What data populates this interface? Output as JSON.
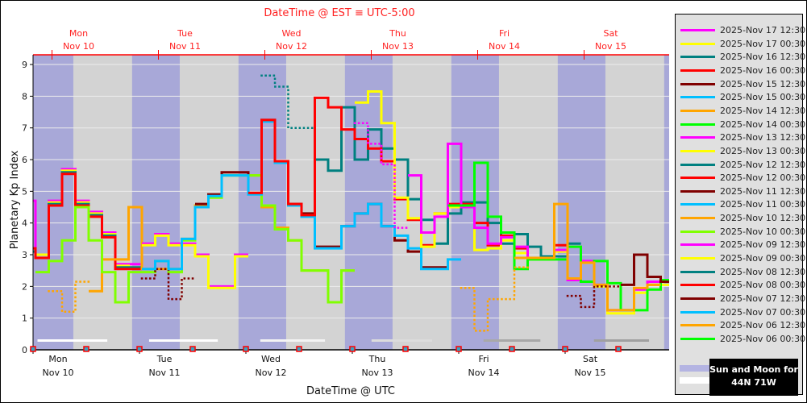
{
  "chart_data": {
    "type": "line",
    "title": "DateTime @ EST ≡ UTC-5:00",
    "xlabel": "DateTime @ UTC",
    "ylabel": "Planetary Kp Index",
    "xlim": [
      "2025-11-10 00:00",
      "2025-11-15 23:30"
    ],
    "ylim": [
      0,
      9.3
    ],
    "yticks": [
      0,
      1,
      2,
      3,
      4,
      5,
      6,
      7,
      8,
      9
    ],
    "grid": true,
    "step_hours": 3,
    "bottom_ticks": [
      {
        "time": "2025-11-10 00:00",
        "day": "Mon",
        "date": "Nov 10"
      },
      {
        "time": "2025-11-11 00:00",
        "day": "Tue",
        "date": "Nov 11"
      },
      {
        "time": "2025-11-12 00:00",
        "day": "Wed",
        "date": "Nov 12"
      },
      {
        "time": "2025-11-13 00:00",
        "day": "Thu",
        "date": "Nov 13"
      },
      {
        "time": "2025-11-14 00:00",
        "day": "Fri",
        "date": "Nov 14"
      },
      {
        "time": "2025-11-15 00:00",
        "day": "Sat",
        "date": "Nov 15"
      }
    ],
    "top_ticks": [
      {
        "time": "2025-11-10 05:00",
        "day": "Mon",
        "date": "Nov 10"
      },
      {
        "time": "2025-11-11 05:00",
        "day": "Tue",
        "date": "Nov 11"
      },
      {
        "time": "2025-11-12 05:00",
        "day": "Wed",
        "date": "Nov 12"
      },
      {
        "time": "2025-11-13 05:00",
        "day": "Thu",
        "date": "Nov 13"
      },
      {
        "time": "2025-11-14 05:00",
        "day": "Fri",
        "date": "Nov 14"
      },
      {
        "time": "2025-11-15 05:00",
        "day": "Sat",
        "date": "Nov 15"
      }
    ],
    "night_bands": [
      [
        "2025-11-09 22:20",
        "2025-11-10 09:05"
      ],
      [
        "2025-11-10 22:20",
        "2025-11-11 09:05"
      ],
      [
        "2025-11-11 22:20",
        "2025-11-12 09:05"
      ],
      [
        "2025-11-12 22:20",
        "2025-11-13 09:05"
      ],
      [
        "2025-11-13 22:20",
        "2025-11-14 09:05"
      ],
      [
        "2025-11-14 22:20",
        "2025-11-15 09:05"
      ],
      [
        "2025-11-15 22:20",
        "2025-11-16 09:05"
      ]
    ],
    "moon_bars": [
      {
        "start": "2025-11-10 01:00",
        "end": "2025-11-10 16:45",
        "color": "#ffffff"
      },
      {
        "start": "2025-11-11 02:10",
        "end": "2025-11-11 17:40",
        "color": "#ffffff"
      },
      {
        "start": "2025-11-12 03:15",
        "end": "2025-11-12 17:50",
        "color": "#f4f4f4"
      },
      {
        "start": "2025-11-13 04:20",
        "end": "2025-11-13 18:00",
        "color": "#dcdcdc"
      },
      {
        "start": "2025-11-14 05:35",
        "end": "2025-11-14 18:25",
        "color": "#a8a8a8"
      },
      {
        "start": "2025-11-15 06:30",
        "end": "2025-11-15 18:55",
        "color": "#a0a0a0"
      }
    ],
    "series": [
      {
        "color": "#ff00ff",
        "style": "solid",
        "start": "2025-11-09 21:00",
        "values": [
          4.7,
          3.0,
          4.7,
          5.7,
          4.7,
          4.35,
          3.7,
          2.7,
          2.7
        ]
      },
      {
        "color": "#ffff00",
        "style": "solid",
        "start": "2025-11-10 00:00",
        "values": [
          3.0,
          4.65,
          5.65,
          4.65,
          4.3,
          3.65,
          2.65,
          2.6
        ]
      },
      {
        "color": "#008080",
        "style": "solid",
        "start": "2025-11-09 21:00",
        "values": [
          3.1,
          2.9,
          4.6,
          5.6,
          4.6,
          4.25,
          3.6,
          2.6,
          2.6
        ]
      },
      {
        "color": "#ff0000",
        "style": "solid",
        "start": "2025-11-09 21:00",
        "values": [
          3.2,
          2.9,
          4.55,
          5.55,
          4.55,
          4.2,
          3.55,
          2.55,
          2.55
        ]
      },
      {
        "color": "#ffa500",
        "style": "dotted",
        "start": "2025-11-10 03:00",
        "values": [
          1.85,
          1.2,
          2.15
        ]
      },
      {
        "color": "#ffa500",
        "style": "solid",
        "start": "2025-11-10 12:00",
        "values": [
          1.85,
          2.85,
          2.85,
          4.5,
          2.55,
          2.55,
          2.55,
          3.5,
          4.55,
          4.85,
          5.5,
          5.5,
          5.5,
          4.5,
          3.85,
          3.45,
          2.5,
          2.5,
          1.5,
          2.5
        ]
      },
      {
        "color": "#80ff00",
        "style": "solid",
        "start": "2025-11-10 00:00",
        "values": [
          2.45,
          2.8,
          3.45,
          4.5,
          3.45,
          2.45,
          1.5,
          2.45,
          2.45,
          2.8,
          2.45,
          3.45,
          4.5,
          4.8,
          5.5,
          5.5,
          5.5,
          4.55,
          3.8,
          3.45,
          2.5,
          2.5,
          1.5,
          2.5
        ]
      },
      {
        "color": "#ff00ff",
        "style": "solid",
        "start": "2025-11-11 00:00",
        "values": [
          3.35,
          3.65,
          3.35,
          3.35,
          3.0,
          2.0,
          2.0,
          3.0
        ]
      },
      {
        "color": "#ffff00",
        "style": "solid",
        "start": "2025-11-11 00:00",
        "values": [
          3.3,
          3.6,
          3.3,
          3.3,
          2.95,
          1.95,
          1.95,
          2.95
        ]
      },
      {
        "color": "#800000",
        "style": "dotted",
        "start": "2025-11-11 00:00",
        "values": [
          2.25,
          2.55,
          1.6,
          2.25
        ]
      },
      {
        "color": "#800000",
        "style": "solid",
        "start": "2025-11-11 12:00",
        "values": [
          4.6,
          4.9,
          5.6,
          5.6,
          4.95,
          7.25,
          5.95,
          4.6,
          4.3,
          3.25,
          3.25,
          3.9,
          4.3,
          4.6,
          3.9,
          3.45,
          3.1,
          2.6,
          2.6
        ]
      },
      {
        "color": "#00bfff",
        "style": "solid",
        "start": "2025-11-11 00:00",
        "values": [
          2.55,
          2.8,
          2.55,
          3.5,
          4.5,
          4.85,
          5.5,
          5.5,
          4.9,
          7.2,
          5.9,
          4.55,
          4.2,
          3.2,
          3.2,
          3.9,
          4.3,
          4.6,
          3.9,
          3.6,
          3.2,
          2.55,
          2.55,
          2.85
        ]
      },
      {
        "color": "#008080",
        "style": "dotted",
        "start": "2025-11-12 03:00",
        "values": [
          8.65,
          8.3,
          7.0,
          7.0
        ]
      },
      {
        "color": "#008080",
        "style": "solid",
        "start": "2025-11-12 15:00",
        "values": [
          6.0,
          5.65,
          7.65,
          6.0,
          6.95,
          6.35,
          6.0,
          4.75,
          4.1,
          3.35,
          4.3,
          4.65,
          4.65,
          4.0,
          3.35,
          3.65,
          3.25,
          2.95,
          2.95,
          3.35
        ]
      },
      {
        "color": "#ff0000",
        "style": "solid",
        "start": "2025-11-12 00:00",
        "values": [
          4.95,
          7.25,
          5.95,
          4.6,
          4.25,
          7.95,
          7.65,
          6.95,
          6.65,
          6.35,
          5.95,
          4.75,
          4.1,
          3.3,
          4.3,
          4.6,
          4.6,
          4.0,
          3.3,
          3.6,
          3.2,
          2.9,
          2.9,
          3.3
        ]
      },
      {
        "color": "#ffff00",
        "style": "solid",
        "start": "2025-11-13 00:00",
        "values": [
          7.8,
          8.15,
          7.15,
          4.8,
          4.15,
          3.25,
          4.3,
          4.5,
          4.5,
          3.15,
          3.2,
          3.45,
          3.05,
          2.85,
          2.85,
          3.1,
          2.2,
          2.75,
          2.0,
          1.15,
          1.15,
          1.8,
          2.05,
          2.05
        ]
      },
      {
        "color": "#ff00ff",
        "style": "dotted",
        "start": "2025-11-13 00:00",
        "values": [
          7.15,
          6.5,
          5.85,
          3.85
        ]
      },
      {
        "color": "#ff00ff",
        "style": "solid",
        "start": "2025-11-13 12:00",
        "values": [
          5.5,
          3.7,
          4.2,
          6.5,
          4.5,
          3.85,
          3.35,
          3.55,
          3.25,
          2.9,
          2.9,
          3.15,
          2.2,
          2.8,
          2.05,
          1.25,
          1.25,
          1.9,
          2.15,
          2.15
        ]
      },
      {
        "color": "#00ff00",
        "style": "solid",
        "start": "2025-11-13 21:00",
        "values": [
          4.55,
          4.55,
          5.9,
          4.2,
          3.7,
          2.55,
          2.85,
          2.85,
          2.85,
          3.25,
          2.15,
          2.8,
          2.1,
          1.25,
          1.25,
          1.9,
          2.2
        ]
      },
      {
        "color": "#ffa500",
        "style": "dotted",
        "start": "2025-11-14 00:00",
        "values": [
          1.95,
          0.6,
          1.6,
          1.6,
          2.6
        ]
      },
      {
        "color": "#ffa500",
        "style": "solid",
        "start": "2025-11-14 12:00",
        "values": [
          2.9,
          2.9,
          2.9,
          4.6,
          2.25,
          2.75,
          2.05,
          1.25,
          1.25,
          1.95,
          2.05
        ]
      },
      {
        "color": "#800000",
        "style": "dotted",
        "start": "2025-11-15 00:00",
        "values": [
          1.7,
          1.35,
          2.0,
          2.0
        ]
      },
      {
        "color": "#800000",
        "style": "solid",
        "start": "2025-11-15 12:00",
        "values": [
          2.05,
          3.0,
          2.3,
          2.15
        ]
      }
    ]
  },
  "legend": {
    "items": [
      {
        "label": "2025-Nov 17 12:30",
        "color": "#ff00ff"
      },
      {
        "label": "2025-Nov 17 00:30",
        "color": "#ffff00"
      },
      {
        "label": "2025-Nov 16 12:30",
        "color": "#008080"
      },
      {
        "label": "2025-Nov 16 00:30",
        "color": "#ff0000"
      },
      {
        "label": "2025-Nov 15 12:30",
        "color": "#800000"
      },
      {
        "label": "2025-Nov 15 00:30",
        "color": "#00bfff"
      },
      {
        "label": "2025-Nov 14 12:30",
        "color": "#ffa500"
      },
      {
        "label": "2025-Nov 14 00:30",
        "color": "#00ff00"
      },
      {
        "label": "2025-Nov 13 12:30",
        "color": "#ff00ff"
      },
      {
        "label": "2025-Nov 13 00:30",
        "color": "#ffff00"
      },
      {
        "label": "2025-Nov 12 12:30",
        "color": "#008080"
      },
      {
        "label": "2025-Nov 12 00:30",
        "color": "#ff0000"
      },
      {
        "label": "2025-Nov 11 12:30",
        "color": "#800000"
      },
      {
        "label": "2025-Nov 11 00:30",
        "color": "#00bfff"
      },
      {
        "label": "2025-Nov 10 12:30",
        "color": "#ffa500"
      },
      {
        "label": "2025-Nov 10 00:30",
        "color": "#80ff00"
      },
      {
        "label": "2025-Nov 09 12:30",
        "color": "#ff00ff"
      },
      {
        "label": "2025-Nov 09 00:30",
        "color": "#ffff00"
      },
      {
        "label": "2025-Nov 08 12:30",
        "color": "#008080"
      },
      {
        "label": "2025-Nov 08 00:30",
        "color": "#ff0000"
      },
      {
        "label": "2025-Nov 07 12:30",
        "color": "#800000"
      },
      {
        "label": "2025-Nov 07 00:30",
        "color": "#00bfff"
      },
      {
        "label": "2025-Nov 06 12:30",
        "color": "#ffa500"
      },
      {
        "label": "2025-Nov 06 00:30",
        "color": "#00ff00"
      }
    ],
    "sun_moon_line1": "Sun and Moon for",
    "sun_moon_line2": "44N 71W"
  },
  "colors": {
    "plot_bg": "#d3d3d3",
    "night": "#a8a8d8",
    "top_axis": "#ff0000",
    "marker": "#ff0000"
  }
}
